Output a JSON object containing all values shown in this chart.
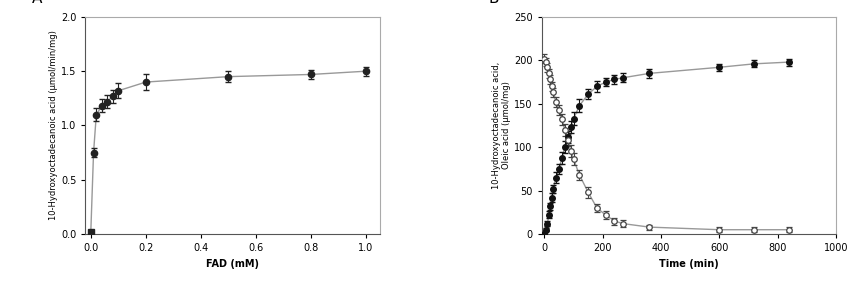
{
  "panel_A": {
    "label": "A",
    "xlabel": "FAD (mM)",
    "ylabel": "10-Hydroxyoctadecanoic acid (µmol/min/mg)",
    "xlim": [
      -0.02,
      1.05
    ],
    "ylim": [
      0,
      2.0
    ],
    "xticks": [
      0.0,
      0.2,
      0.4,
      0.6,
      0.8,
      1.0
    ],
    "yticks": [
      0.0,
      0.5,
      1.0,
      1.5,
      2.0
    ],
    "x": [
      0.0,
      0.01,
      0.02,
      0.04,
      0.06,
      0.08,
      0.1,
      0.2,
      0.5,
      0.8,
      1.0
    ],
    "y": [
      0.02,
      0.75,
      1.1,
      1.18,
      1.22,
      1.27,
      1.32,
      1.4,
      1.45,
      1.47,
      1.5
    ],
    "yerr": [
      0.02,
      0.04,
      0.06,
      0.06,
      0.06,
      0.06,
      0.07,
      0.07,
      0.05,
      0.04,
      0.04
    ],
    "color": "#222222",
    "linecolor": "#999999"
  },
  "panel_B": {
    "label": "B",
    "xlabel": "Time (min)",
    "ylabel": "10-Hydroxyoctadecanoic acid,\nOleic acid (µmol/mg)",
    "xlim": [
      -10,
      1000
    ],
    "ylim": [
      0,
      250
    ],
    "xticks": [
      0,
      200,
      400,
      600,
      800,
      1000
    ],
    "yticks": [
      0,
      50,
      100,
      150,
      200,
      250
    ],
    "filled_x": [
      0,
      5,
      10,
      15,
      20,
      25,
      30,
      40,
      50,
      60,
      70,
      80,
      90,
      100,
      120,
      150,
      180,
      210,
      240,
      270,
      360,
      600,
      720,
      840
    ],
    "filled_y": [
      0,
      5,
      12,
      22,
      32,
      42,
      52,
      65,
      75,
      88,
      100,
      112,
      123,
      133,
      148,
      161,
      170,
      175,
      178,
      180,
      185,
      192,
      196,
      198
    ],
    "filled_yerr": [
      0,
      2,
      3,
      4,
      4,
      5,
      5,
      6,
      6,
      7,
      7,
      7,
      7,
      7,
      7,
      6,
      6,
      5,
      5,
      5,
      5,
      4,
      4,
      4
    ],
    "open_x": [
      0,
      5,
      10,
      15,
      20,
      25,
      30,
      40,
      50,
      60,
      70,
      80,
      90,
      100,
      120,
      150,
      180,
      210,
      240,
      270,
      360,
      600,
      720,
      840
    ],
    "open_y": [
      202,
      198,
      192,
      185,
      178,
      170,
      163,
      152,
      143,
      132,
      120,
      108,
      96,
      86,
      68,
      48,
      30,
      22,
      15,
      12,
      8,
      5,
      5,
      5
    ],
    "open_yerr": [
      5,
      5,
      5,
      5,
      5,
      5,
      5,
      6,
      6,
      6,
      7,
      7,
      7,
      7,
      6,
      6,
      5,
      5,
      4,
      4,
      3,
      3,
      3,
      3
    ],
    "filled_color": "#111111",
    "open_color": "#444444",
    "linecolor": "#999999"
  }
}
